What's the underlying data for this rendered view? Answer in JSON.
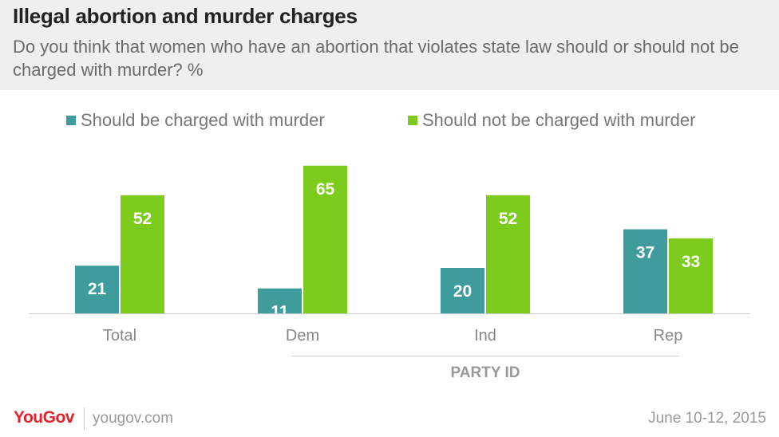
{
  "header": {
    "title": "Illegal abortion and murder charges",
    "subtitle": "Do you think that women who have an abortion that violates state law should or should not be charged with murder? %"
  },
  "colors": {
    "series_1": "#3e9c9c",
    "series_2": "#7dcc1d",
    "header_bg": "#efefef",
    "brand_red": "#e3232c"
  },
  "chart_data": {
    "type": "bar",
    "title": "Illegal abortion and murder charges",
    "subtitle": "Do you think that women who have an abortion that violates state law should or should not be charged with murder? %",
    "categories": [
      "Total",
      "Dem",
      "Ind",
      "Rep"
    ],
    "series": [
      {
        "name": "Should be charged with murder",
        "values": [
          21,
          11,
          20,
          37
        ]
      },
      {
        "name": "Should not be charged with murder",
        "values": [
          52,
          65,
          52,
          33
        ]
      }
    ],
    "ylim": [
      0,
      70
    ],
    "group_label": "PARTY ID",
    "legend_position": "top",
    "grid": false,
    "data_labels": true
  },
  "footer": {
    "brand": "YouGov",
    "site": "yougov.com",
    "date": "June 10-12, 2015"
  }
}
